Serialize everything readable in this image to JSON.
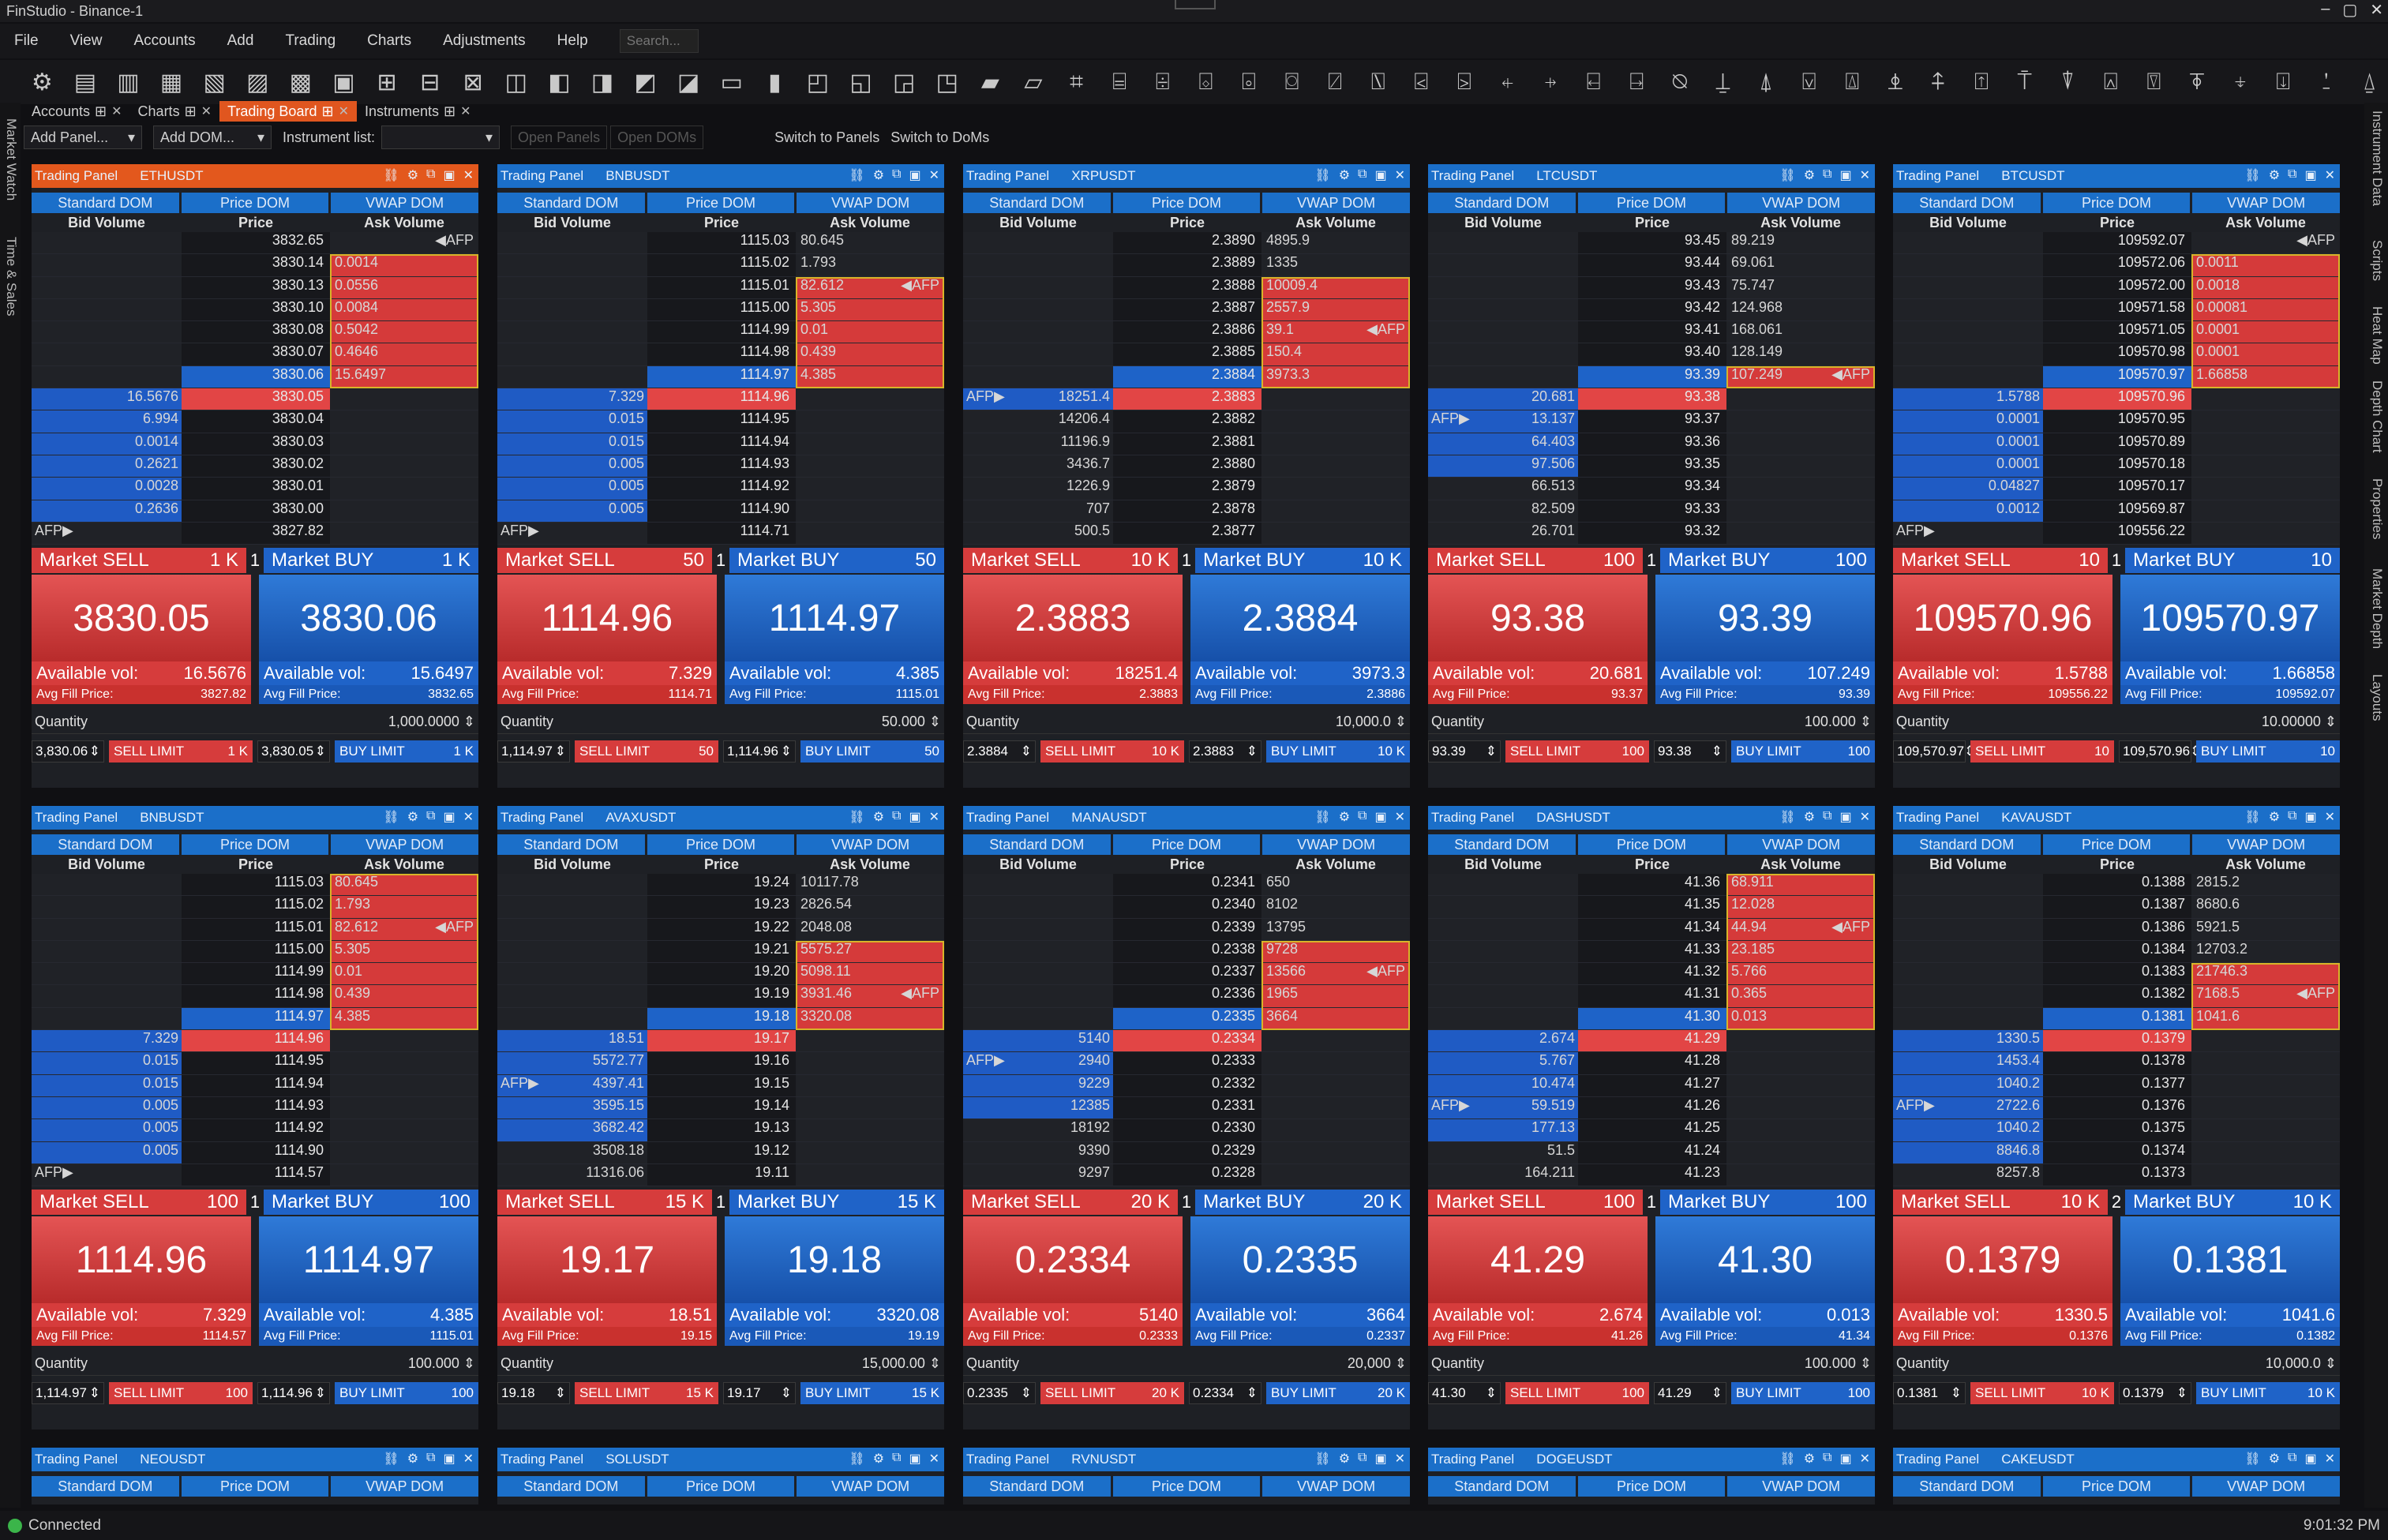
{
  "app": {
    "title": "FinStudio - Binance-1",
    "status": "Connected",
    "time": "9:01:32 PM"
  },
  "menu": [
    "File",
    "View",
    "Accounts",
    "Add",
    "Trading",
    "Charts",
    "Adjustments",
    "Help"
  ],
  "search_placeholder": "Search...",
  "tabs": [
    {
      "label": "Accounts",
      "active": false
    },
    {
      "label": "Charts",
      "active": false
    },
    {
      "label": "Trading Board",
      "active": true
    },
    {
      "label": "Instruments",
      "active": false
    }
  ],
  "subtoolbar": {
    "add_panel": "Add Panel...",
    "add_dom": "Add DOM...",
    "instrument_list": "Instrument list:",
    "open_panels": "Open Panels",
    "open_doms": "Open DOMs",
    "switch_panels": "Switch to Panels",
    "switch_doms": "Switch to DoMs"
  },
  "left_strip": [
    "Market Watch",
    "Time & Sales"
  ],
  "right_strip": [
    "Instrument Data",
    "Scripts",
    "Heat Map",
    "Depth Chart",
    "Properties",
    "Market Depth",
    "Layouts"
  ],
  "labels": {
    "panel": "Trading Panel",
    "standard_dom": "Standard DOM",
    "price_dom": "Price DOM",
    "vwap_dom": "VWAP DOM",
    "bid_volume": "Bid Volume",
    "price": "Price",
    "ask_volume": "Ask Volume",
    "market_sell": "Market SELL",
    "market_buy": "Market BUY",
    "available": "Available vol:",
    "avg_fill": "Avg Fill Price:",
    "quantity": "Quantity",
    "sell_limit": "SELL LIMIT",
    "buy_limit": "BUY LIMIT",
    "afp": "AFP"
  },
  "panels": [
    {
      "symbol": "ETHUSDT",
      "orange": true,
      "asks": [
        [
          "3832.65",
          "",
          ""
        ],
        [
          "3830.14",
          "0.0014",
          ""
        ],
        [
          "3830.13",
          "0.0556",
          ""
        ],
        [
          "3830.10",
          "0.0084",
          ""
        ],
        [
          "3830.08",
          "0.5042",
          ""
        ],
        [
          "3830.07",
          "0.4646",
          ""
        ],
        [
          "3830.06",
          "15.6497",
          ""
        ]
      ],
      "bids": [
        [
          "3830.05",
          "16.5676"
        ],
        [
          "3830.04",
          "6.994"
        ],
        [
          "3830.03",
          "0.0014"
        ],
        [
          "3830.02",
          "0.2621"
        ],
        [
          "3830.01",
          "0.0028"
        ],
        [
          "3830.00",
          "0.2636"
        ],
        [
          "3827.82",
          ""
        ]
      ],
      "ask_afp": 0,
      "bid_afp": 6,
      "ask_fill": [
        1,
        6
      ],
      "bid_fill": [
        0,
        5
      ],
      "sell_size": "1 K",
      "buy_size": "1 K",
      "qty_idx": "1",
      "sell": "3830.05",
      "buy": "3830.06",
      "av_sell": "16.5676",
      "av_buy": "15.6497",
      "af_sell": "3827.82",
      "af_buy": "3832.65",
      "quantity": "1,000.0000",
      "lim_sell_price": "3,830.06",
      "lim_sell_size": "1 K",
      "lim_buy_price": "3,830.05",
      "lim_buy_size": "1 K"
    },
    {
      "symbol": "BNBUSDT",
      "asks": [
        [
          "1115.03",
          "80.645",
          ""
        ],
        [
          "1115.02",
          "1.793",
          ""
        ],
        [
          "1115.01",
          "82.612",
          ""
        ],
        [
          "1115.00",
          "5.305",
          ""
        ],
        [
          "1114.99",
          "0.01",
          ""
        ],
        [
          "1114.98",
          "0.439",
          ""
        ],
        [
          "1114.97",
          "4.385",
          ""
        ]
      ],
      "bids": [
        [
          "1114.96",
          "7.329"
        ],
        [
          "1114.95",
          "0.015"
        ],
        [
          "1114.94",
          "0.015"
        ],
        [
          "1114.93",
          "0.005"
        ],
        [
          "1114.92",
          "0.005"
        ],
        [
          "1114.90",
          "0.005"
        ],
        [
          "1114.71",
          ""
        ]
      ],
      "ask_afp": 2,
      "bid_afp": 6,
      "ask_fill": [
        2,
        6
      ],
      "bid_fill": [
        0,
        5
      ],
      "sell_size": "50",
      "buy_size": "50",
      "qty_idx": "1",
      "sell": "1114.96",
      "buy": "1114.97",
      "av_sell": "7.329",
      "av_buy": "4.385",
      "af_sell": "1114.71",
      "af_buy": "1115.01",
      "quantity": "50.000",
      "lim_sell_price": "1,114.97",
      "lim_sell_size": "50",
      "lim_buy_price": "1,114.96",
      "lim_buy_size": "50"
    },
    {
      "symbol": "XRPUSDT",
      "asks": [
        [
          "2.3890",
          "4895.9",
          ""
        ],
        [
          "2.3889",
          "1335",
          ""
        ],
        [
          "2.3888",
          "10009.4",
          ""
        ],
        [
          "2.3887",
          "2557.9",
          ""
        ],
        [
          "2.3886",
          "39.1",
          ""
        ],
        [
          "2.3885",
          "150.4",
          ""
        ],
        [
          "2.3884",
          "3973.3",
          ""
        ]
      ],
      "bids": [
        [
          "2.3883",
          "18251.4"
        ],
        [
          "2.3882",
          "14206.4"
        ],
        [
          "2.3881",
          "11196.9"
        ],
        [
          "2.3880",
          "3436.7"
        ],
        [
          "2.3879",
          "1226.9"
        ],
        [
          "2.3878",
          "707"
        ],
        [
          "2.3877",
          "500.5"
        ]
      ],
      "ask_afp": 4,
      "bid_afp": 0,
      "ask_fill": [
        2,
        6
      ],
      "bid_fill": [
        0,
        0
      ],
      "sell_size": "10 K",
      "buy_size": "10 K",
      "qty_idx": "1",
      "sell": "2.3883",
      "buy": "2.3884",
      "av_sell": "18251.4",
      "av_buy": "3973.3",
      "af_sell": "2.3883",
      "af_buy": "2.3886",
      "quantity": "10,000.0",
      "lim_sell_price": "2.3884",
      "lim_sell_size": "10 K",
      "lim_buy_price": "2.3883",
      "lim_buy_size": "10 K"
    },
    {
      "symbol": "LTCUSDT",
      "asks": [
        [
          "93.45",
          "89.219",
          ""
        ],
        [
          "93.44",
          "69.061",
          ""
        ],
        [
          "93.43",
          "75.747",
          ""
        ],
        [
          "93.42",
          "124.968",
          ""
        ],
        [
          "93.41",
          "168.061",
          ""
        ],
        [
          "93.40",
          "128.149",
          ""
        ],
        [
          "93.39",
          "107.249",
          ""
        ]
      ],
      "bids": [
        [
          "93.38",
          "20.681"
        ],
        [
          "93.37",
          "13.137"
        ],
        [
          "93.36",
          "64.403"
        ],
        [
          "93.35",
          "97.506"
        ],
        [
          "93.34",
          "66.513"
        ],
        [
          "93.33",
          "82.509"
        ],
        [
          "93.32",
          "26.701"
        ]
      ],
      "ask_afp": 6,
      "bid_afp": 1,
      "ask_fill": [
        6,
        6
      ],
      "bid_fill": [
        0,
        3
      ],
      "sell_size": "100",
      "buy_size": "100",
      "qty_idx": "1",
      "sell": "93.38",
      "buy": "93.39",
      "av_sell": "20.681",
      "av_buy": "107.249",
      "af_sell": "93.37",
      "af_buy": "93.39",
      "quantity": "100.000",
      "lim_sell_price": "93.39",
      "lim_sell_size": "100",
      "lim_buy_price": "93.38",
      "lim_buy_size": "100"
    },
    {
      "symbol": "BTCUSDT",
      "asks": [
        [
          "109592.07",
          "",
          ""
        ],
        [
          "109572.06",
          "0.0011",
          ""
        ],
        [
          "109572.00",
          "0.0018",
          ""
        ],
        [
          "109571.58",
          "0.00081",
          ""
        ],
        [
          "109571.05",
          "0.0001",
          ""
        ],
        [
          "109570.98",
          "0.0001",
          ""
        ],
        [
          "109570.97",
          "1.66858",
          ""
        ]
      ],
      "bids": [
        [
          "109570.96",
          "1.5788"
        ],
        [
          "109570.95",
          "0.0001"
        ],
        [
          "109570.89",
          "0.0001"
        ],
        [
          "109570.18",
          "0.0001"
        ],
        [
          "109570.17",
          "0.04827"
        ],
        [
          "109569.87",
          "0.0012"
        ],
        [
          "109556.22",
          ""
        ]
      ],
      "ask_afp": 0,
      "bid_afp": 6,
      "ask_fill": [
        1,
        6
      ],
      "bid_fill": [
        0,
        5
      ],
      "sell_size": "10",
      "buy_size": "10",
      "qty_idx": "1",
      "sell": "109570.96",
      "buy": "109570.97",
      "av_sell": "1.5788",
      "av_buy": "1.66858",
      "af_sell": "109556.22",
      "af_buy": "109592.07",
      "quantity": "10.00000",
      "lim_sell_price": "109,570.97",
      "lim_sell_size": "10",
      "lim_buy_price": "109,570.96",
      "lim_buy_size": "10"
    },
    {
      "symbol": "BNBUSDT",
      "asks": [
        [
          "1115.03",
          "80.645",
          ""
        ],
        [
          "1115.02",
          "1.793",
          ""
        ],
        [
          "1115.01",
          "82.612",
          ""
        ],
        [
          "1115.00",
          "5.305",
          ""
        ],
        [
          "1114.99",
          "0.01",
          ""
        ],
        [
          "1114.98",
          "0.439",
          ""
        ],
        [
          "1114.97",
          "4.385",
          ""
        ]
      ],
      "bids": [
        [
          "1114.96",
          "7.329"
        ],
        [
          "1114.95",
          "0.015"
        ],
        [
          "1114.94",
          "0.015"
        ],
        [
          "1114.93",
          "0.005"
        ],
        [
          "1114.92",
          "0.005"
        ],
        [
          "1114.90",
          "0.005"
        ],
        [
          "1114.57",
          ""
        ]
      ],
      "ask_afp": 2,
      "bid_afp": 6,
      "ask_fill": [
        0,
        6
      ],
      "bid_fill": [
        0,
        5
      ],
      "sell_size": "100",
      "buy_size": "100",
      "qty_idx": "1",
      "sell": "1114.96",
      "buy": "1114.97",
      "av_sell": "7.329",
      "av_buy": "4.385",
      "af_sell": "1114.57",
      "af_buy": "1115.01",
      "quantity": "100.000",
      "lim_sell_price": "1,114.97",
      "lim_sell_size": "100",
      "lim_buy_price": "1,114.96",
      "lim_buy_size": "100"
    },
    {
      "symbol": "AVAXUSDT",
      "asks": [
        [
          "19.24",
          "10117.78",
          ""
        ],
        [
          "19.23",
          "2826.54",
          ""
        ],
        [
          "19.22",
          "2048.08",
          ""
        ],
        [
          "19.21",
          "5575.27",
          ""
        ],
        [
          "19.20",
          "5098.11",
          ""
        ],
        [
          "19.19",
          "3931.46",
          ""
        ],
        [
          "19.18",
          "3320.08",
          ""
        ]
      ],
      "bids": [
        [
          "19.17",
          "18.51"
        ],
        [
          "19.16",
          "5572.77"
        ],
        [
          "19.15",
          "4397.41"
        ],
        [
          "19.14",
          "3595.15"
        ],
        [
          "19.13",
          "3682.42"
        ],
        [
          "19.12",
          "3508.18"
        ],
        [
          "19.11",
          "11316.06"
        ]
      ],
      "ask_afp": 5,
      "bid_afp": 2,
      "ask_fill": [
        3,
        6
      ],
      "bid_fill": [
        0,
        4
      ],
      "sell_size": "15 K",
      "buy_size": "15 K",
      "qty_idx": "1",
      "sell": "19.17",
      "buy": "19.18",
      "av_sell": "18.51",
      "av_buy": "3320.08",
      "af_sell": "19.15",
      "af_buy": "19.19",
      "quantity": "15,000.00",
      "lim_sell_price": "19.18",
      "lim_sell_size": "15 K",
      "lim_buy_price": "19.17",
      "lim_buy_size": "15 K"
    },
    {
      "symbol": "MANAUSDT",
      "asks": [
        [
          "0.2341",
          "650",
          ""
        ],
        [
          "0.2340",
          "8102",
          ""
        ],
        [
          "0.2339",
          "13795",
          ""
        ],
        [
          "0.2338",
          "9728",
          ""
        ],
        [
          "0.2337",
          "13566",
          ""
        ],
        [
          "0.2336",
          "1965",
          ""
        ],
        [
          "0.2335",
          "3664",
          ""
        ]
      ],
      "bids": [
        [
          "0.2334",
          "5140"
        ],
        [
          "0.2333",
          "2940"
        ],
        [
          "0.2332",
          "9229"
        ],
        [
          "0.2331",
          "12385"
        ],
        [
          "0.2330",
          "18192"
        ],
        [
          "0.2329",
          "9390"
        ],
        [
          "0.2328",
          "9297"
        ]
      ],
      "ask_afp": 4,
      "bid_afp": 1,
      "ask_fill": [
        3,
        6
      ],
      "bid_fill": [
        0,
        3
      ],
      "sell_size": "20 K",
      "buy_size": "20 K",
      "qty_idx": "1",
      "sell": "0.2334",
      "buy": "0.2335",
      "av_sell": "5140",
      "av_buy": "3664",
      "af_sell": "0.2333",
      "af_buy": "0.2337",
      "quantity": "20,000",
      "lim_sell_price": "0.2335",
      "lim_sell_size": "20 K",
      "lim_buy_price": "0.2334",
      "lim_buy_size": "20 K"
    },
    {
      "symbol": "DASHUSDT",
      "asks": [
        [
          "41.36",
          "68.911",
          ""
        ],
        [
          "41.35",
          "12.028",
          ""
        ],
        [
          "41.34",
          "44.94",
          ""
        ],
        [
          "41.33",
          "23.185",
          ""
        ],
        [
          "41.32",
          "5.766",
          ""
        ],
        [
          "41.31",
          "0.365",
          ""
        ],
        [
          "41.30",
          "0.013",
          ""
        ]
      ],
      "bids": [
        [
          "41.29",
          "2.674"
        ],
        [
          "41.28",
          "5.767"
        ],
        [
          "41.27",
          "10.474"
        ],
        [
          "41.26",
          "59.519"
        ],
        [
          "41.25",
          "177.13"
        ],
        [
          "41.24",
          "51.5"
        ],
        [
          "41.23",
          "164.211"
        ]
      ],
      "ask_afp": 2,
      "bid_afp": 3,
      "ask_fill": [
        0,
        6
      ],
      "bid_fill": [
        0,
        4
      ],
      "sell_size": "100",
      "buy_size": "100",
      "qty_idx": "1",
      "sell": "41.29",
      "buy": "41.30",
      "av_sell": "2.674",
      "av_buy": "0.013",
      "af_sell": "41.26",
      "af_buy": "41.34",
      "quantity": "100.000",
      "lim_sell_price": "41.30",
      "lim_sell_size": "100",
      "lim_buy_price": "41.29",
      "lim_buy_size": "100"
    },
    {
      "symbol": "KAVAUSDT",
      "asks": [
        [
          "0.1388",
          "2815.2",
          ""
        ],
        [
          "0.1387",
          "8680.6",
          ""
        ],
        [
          "0.1386",
          "5921.5",
          ""
        ],
        [
          "0.1384",
          "12703.2",
          ""
        ],
        [
          "0.1383",
          "21746.3",
          ""
        ],
        [
          "0.1382",
          "7168.5",
          ""
        ],
        [
          "0.1381",
          "1041.6",
          ""
        ]
      ],
      "bids": [
        [
          "0.1379",
          "1330.5"
        ],
        [
          "0.1378",
          "1453.4"
        ],
        [
          "0.1377",
          "1040.2"
        ],
        [
          "0.1376",
          "2722.6"
        ],
        [
          "0.1375",
          "1040.2"
        ],
        [
          "0.1374",
          "8846.8"
        ],
        [
          "0.1373",
          "8257.8"
        ]
      ],
      "ask_afp": 5,
      "bid_afp": 3,
      "ask_fill": [
        4,
        6
      ],
      "bid_fill": [
        0,
        5
      ],
      "sell_size": "10 K",
      "buy_size": "10 K",
      "qty_idx": "2",
      "sell": "0.1379",
      "buy": "0.1381",
      "av_sell": "1330.5",
      "av_buy": "1041.6",
      "af_sell": "0.1376",
      "af_buy": "0.1382",
      "quantity": "10,000.0",
      "lim_sell_price": "0.1381",
      "lim_sell_size": "10 K",
      "lim_buy_price": "0.1379",
      "lim_buy_size": "10 K"
    }
  ],
  "bottom_panels": [
    "NEOUSDT",
    "SOLUSDT",
    "RVNUSDT",
    "DOGEUSDT",
    "CAKEUSDT"
  ]
}
